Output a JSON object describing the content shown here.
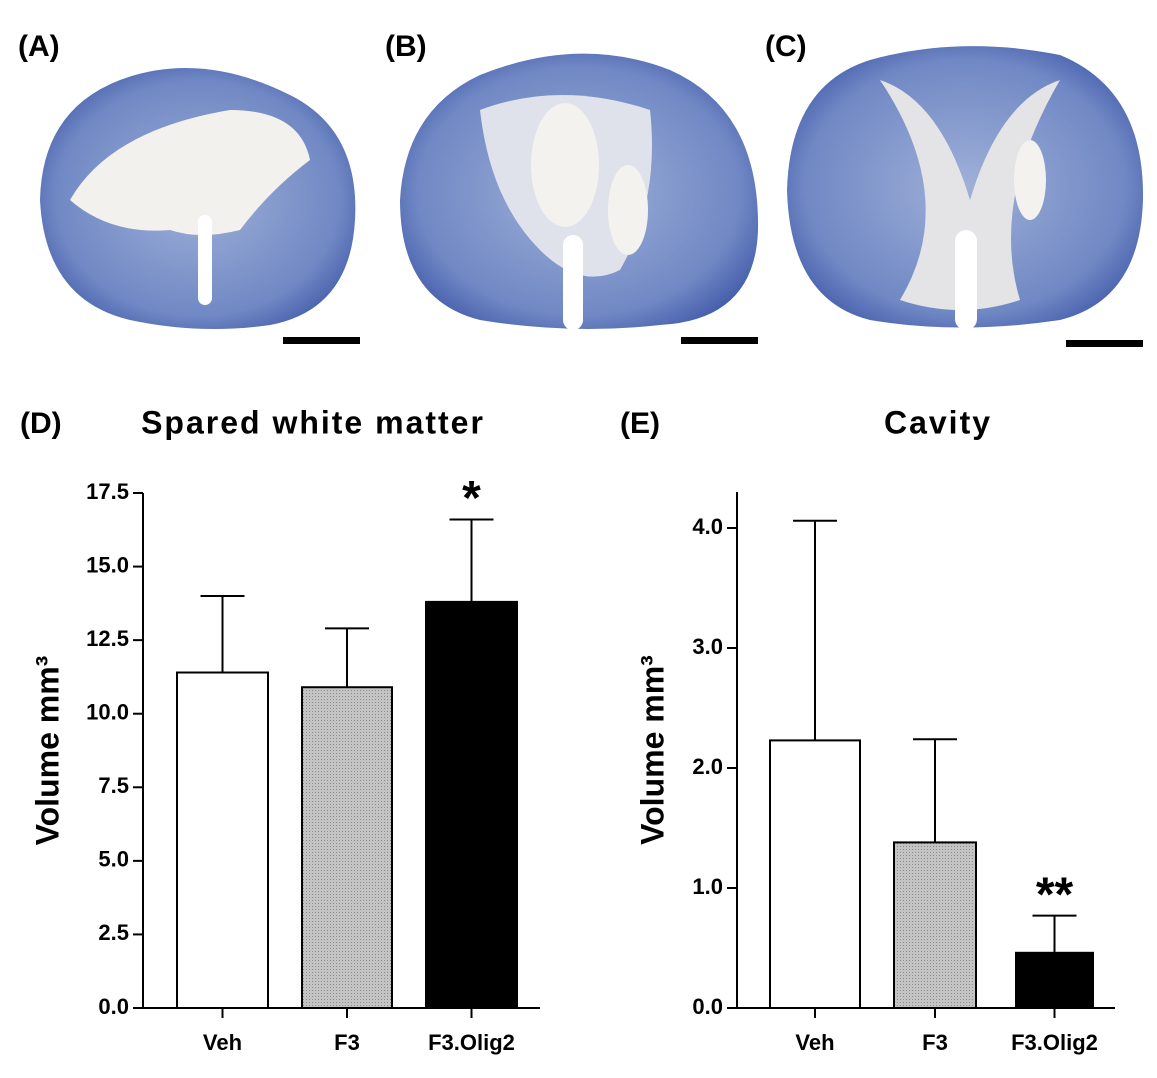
{
  "panels": [
    "(A)",
    "(B)",
    "(C)"
  ],
  "chart_data": [
    {
      "type": "bar",
      "panel": "(D)",
      "title": "Spared white matter",
      "ylabel": "Volume mm³",
      "categories": [
        "Veh",
        "F3",
        "F3.Olig2"
      ],
      "values": [
        11.4,
        10.9,
        13.8
      ],
      "errors": [
        2.6,
        2.0,
        2.8
      ],
      "colors": [
        "#ffffff",
        "#b4b4b4",
        "#000000"
      ],
      "ylim": [
        0,
        17.5
      ],
      "yticks": [
        {
          "value": 0,
          "label": "0.0"
        },
        2.5,
        {
          "value": 5,
          "label": "5.0"
        },
        7.5,
        {
          "value": 10,
          "label": "10.0"
        },
        12.5,
        {
          "value": 15,
          "label": "15.0"
        },
        17.5
      ],
      "annotations": [
        null,
        null,
        "*"
      ]
    },
    {
      "type": "bar",
      "panel": "(E)",
      "title": "Cavity",
      "ylabel": "Volume mm³",
      "categories": [
        "Veh",
        "F3",
        "F3.Olig2"
      ],
      "values": [
        2.23,
        1.38,
        0.46
      ],
      "errors": [
        1.83,
        0.86,
        0.31
      ],
      "colors": [
        "#ffffff",
        "#b4b4b4",
        "#000000"
      ],
      "ylim": [
        0,
        4.3
      ],
      "yticks": [
        {
          "value": 0,
          "label": "0.0"
        },
        {
          "value": 1,
          "label": "1.0"
        },
        {
          "value": 2,
          "label": "2.0"
        },
        {
          "value": 3,
          "label": "3.0"
        },
        {
          "value": 4,
          "label": "4.0"
        }
      ],
      "annotations": [
        null,
        null,
        "**"
      ]
    }
  ]
}
